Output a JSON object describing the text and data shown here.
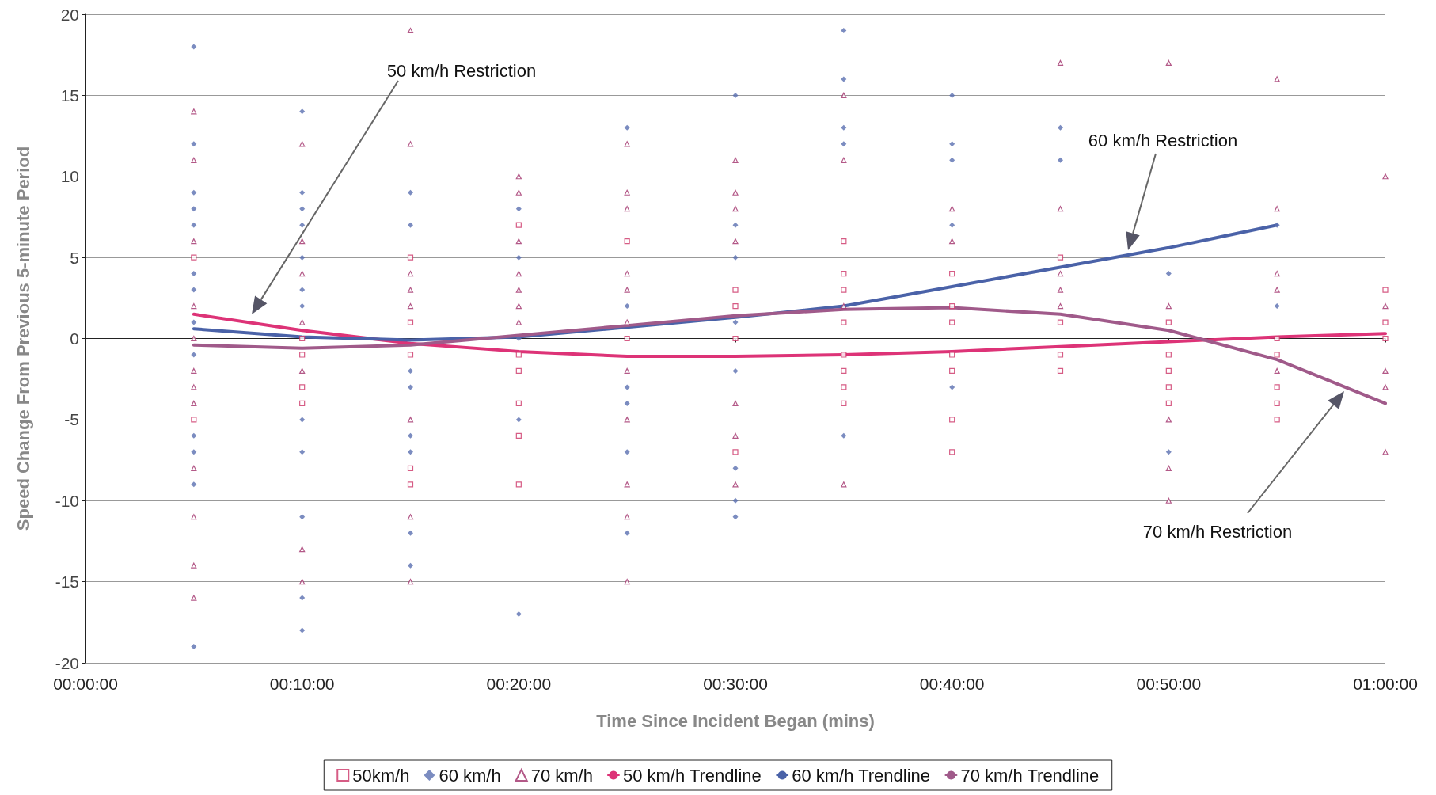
{
  "chart_data": {
    "type": "scatter",
    "xlabel": "Time Since Incident Began (mins)",
    "ylabel": "Speed Change From Previous 5-minute Period",
    "xlim": [
      0,
      60
    ],
    "xticks": [
      {
        "value": 0,
        "label": "00:00:00"
      },
      {
        "value": 10,
        "label": "00:10:00"
      },
      {
        "value": 20,
        "label": "00:20:00"
      },
      {
        "value": 30,
        "label": "00:30:00"
      },
      {
        "value": 40,
        "label": "00:40:00"
      },
      {
        "value": 50,
        "label": "00:50:00"
      },
      {
        "value": 60,
        "label": "01:00:00"
      }
    ],
    "ylim": [
      -20,
      20
    ],
    "yticks": [
      -20,
      -15,
      -10,
      -5,
      0,
      5,
      10,
      15,
      20
    ],
    "grid": "y",
    "legend": "bottom",
    "series": [
      {
        "name": "50km/h",
        "marker": "square",
        "color": "#cc3366",
        "x": [
          5,
          5,
          10,
          10,
          10,
          10,
          15,
          15,
          15,
          15,
          15,
          20,
          20,
          20,
          20,
          20,
          20,
          25,
          25,
          30,
          30,
          30,
          30,
          35,
          35,
          35,
          35,
          35,
          35,
          35,
          35,
          40,
          40,
          40,
          40,
          40,
          40,
          40,
          45,
          45,
          45,
          45,
          50,
          50,
          50,
          50,
          50,
          55,
          55,
          55,
          55,
          55,
          60,
          60,
          60
        ],
        "values": [
          5,
          -5,
          0,
          -1,
          -3,
          -4,
          5,
          1,
          -1,
          -8,
          -9,
          7,
          -1,
          -2,
          -4,
          -6,
          -9,
          6,
          0,
          3,
          2,
          0,
          -7,
          6,
          4,
          3,
          1,
          -1,
          -2,
          -3,
          -4,
          4,
          2,
          1,
          -1,
          -2,
          -5,
          -7,
          5,
          1,
          -1,
          -2,
          1,
          -1,
          -2,
          -3,
          -4,
          0,
          -1,
          -3,
          -4,
          -5,
          3,
          1,
          0
        ]
      },
      {
        "name": "60 km/h",
        "marker": "diamond",
        "color": "#5a6fb0",
        "x": [
          5,
          5,
          5,
          5,
          5,
          5,
          5,
          5,
          5,
          5,
          5,
          5,
          5,
          10,
          10,
          10,
          10,
          10,
          10,
          10,
          10,
          10,
          10,
          10,
          10,
          15,
          15,
          15,
          15,
          15,
          15,
          15,
          15,
          20,
          20,
          20,
          20,
          20,
          25,
          25,
          25,
          25,
          25,
          25,
          30,
          30,
          30,
          30,
          30,
          30,
          30,
          30,
          35,
          35,
          35,
          35,
          35,
          40,
          40,
          40,
          40,
          40,
          45,
          45,
          50,
          50,
          55,
          55
        ],
        "values": [
          18,
          12,
          9,
          8,
          7,
          4,
          3,
          1,
          -1,
          -6,
          -7,
          -9,
          -19,
          14,
          9,
          8,
          7,
          5,
          3,
          2,
          -5,
          -7,
          -11,
          -16,
          -18,
          9,
          7,
          -2,
          -3,
          -6,
          -7,
          -12,
          -14,
          8,
          5,
          0,
          -5,
          -17,
          13,
          2,
          -3,
          -4,
          -7,
          -12,
          15,
          7,
          5,
          1,
          -2,
          -8,
          -10,
          -11,
          19,
          16,
          13,
          12,
          -6,
          15,
          12,
          11,
          7,
          -3,
          13,
          11,
          4,
          -7,
          7,
          2
        ]
      },
      {
        "name": "70 km/h",
        "marker": "triangle",
        "color": "#a0306a",
        "x": [
          5,
          5,
          5,
          5,
          5,
          5,
          5,
          5,
          5,
          5,
          5,
          5,
          10,
          10,
          10,
          10,
          10,
          10,
          10,
          15,
          15,
          15,
          15,
          15,
          15,
          15,
          15,
          20,
          20,
          20,
          20,
          20,
          20,
          20,
          25,
          25,
          25,
          25,
          25,
          25,
          25,
          25,
          25,
          25,
          25,
          30,
          30,
          30,
          30,
          30,
          30,
          30,
          35,
          35,
          35,
          35,
          40,
          40,
          45,
          45,
          45,
          45,
          45,
          50,
          50,
          50,
          50,
          50,
          55,
          55,
          55,
          55,
          55,
          60,
          60,
          60,
          60,
          60
        ],
        "values": [
          14,
          11,
          6,
          2,
          0,
          -2,
          -3,
          -4,
          -8,
          -11,
          -14,
          -16,
          12,
          6,
          4,
          1,
          -2,
          -13,
          -15,
          19,
          12,
          4,
          3,
          2,
          -5,
          -11,
          -15,
          10,
          9,
          6,
          4,
          3,
          2,
          1,
          12,
          9,
          8,
          4,
          3,
          1,
          -2,
          -5,
          -9,
          -11,
          -15,
          11,
          9,
          8,
          6,
          -4,
          -6,
          -9,
          15,
          11,
          2,
          -9,
          8,
          6,
          17,
          8,
          4,
          3,
          2,
          17,
          2,
          -5,
          -8,
          -10,
          16,
          8,
          4,
          3,
          -2,
          10,
          2,
          -2,
          -3,
          -7
        ]
      },
      {
        "name": "50 km/h Trendline",
        "type": "line",
        "marker": "none",
        "color": "#dd3377",
        "x": [
          5,
          10,
          15,
          20,
          25,
          30,
          35,
          40,
          45,
          50,
          55,
          60
        ],
        "values": [
          1.5,
          0.5,
          -0.3,
          -0.8,
          -1.1,
          -1.1,
          -1.0,
          -0.8,
          -0.5,
          -0.2,
          0.1,
          0.3
        ]
      },
      {
        "name": "60 km/h Trendline",
        "type": "line",
        "marker": "none",
        "color": "#4a62a8",
        "x": [
          5,
          10,
          15,
          20,
          25,
          30,
          35,
          40,
          45,
          50,
          55
        ],
        "values": [
          0.6,
          0.1,
          -0.1,
          0.1,
          0.7,
          1.3,
          2.0,
          3.2,
          4.4,
          5.6,
          7.0
        ]
      },
      {
        "name": "70 km/h Trendline",
        "type": "line",
        "marker": "none",
        "color": "#a05a8a",
        "x": [
          5,
          10,
          15,
          20,
          25,
          30,
          35,
          40,
          45,
          50,
          55,
          60
        ],
        "values": [
          -0.4,
          -0.6,
          -0.4,
          0.2,
          0.8,
          1.4,
          1.8,
          1.9,
          1.5,
          0.5,
          -1.3,
          -4.0
        ]
      }
    ],
    "annotations": [
      "50 km/h Restriction",
      "60 km/h Restriction",
      "70 km/h Restriction"
    ]
  }
}
